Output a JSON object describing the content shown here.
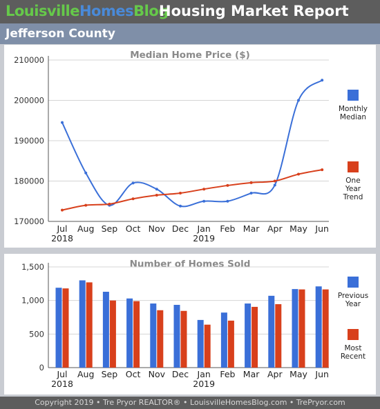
{
  "header": {
    "brand_part1": "Louisville",
    "brand_part2": "Homes",
    "brand_part3": "Blog",
    "report_title": "Housing Market Report"
  },
  "county": "Jefferson County",
  "footer": "Copyright 2019 • Tre Pryor REALTOR® • LouisvilleHomesBlog.com • TrePryor.com",
  "colors": {
    "blue": "#3a6fd8",
    "red": "#d8401c",
    "header_bg": "#5d5d5d",
    "county_bg": "#7f8fa8"
  },
  "chart_data": [
    {
      "type": "line",
      "title": "Median Home Price ($)",
      "categories": [
        "Jul",
        "Aug",
        "Sep",
        "Oct",
        "Nov",
        "Dec",
        "Jan",
        "Feb",
        "Mar",
        "Apr",
        "May",
        "Jun"
      ],
      "year_labels": [
        {
          "index": 0,
          "label": "2018"
        },
        {
          "index": 6,
          "label": "2019"
        }
      ],
      "ylim": [
        170000,
        210000
      ],
      "yticks": [
        "170000",
        "180000",
        "190000",
        "200000",
        "210000"
      ],
      "ytick_values": [
        170000,
        180000,
        190000,
        200000,
        210000
      ],
      "grid": true,
      "legend_position": "right",
      "series": [
        {
          "name": "Monthly Median",
          "name_lines": [
            "Monthly",
            "Median"
          ],
          "color": "#3a6fd8",
          "values": [
            194500,
            182000,
            174000,
            179500,
            178000,
            173800,
            175000,
            175000,
            177000,
            179000,
            200000,
            205000
          ]
        },
        {
          "name": "One Year Trend",
          "name_lines": [
            "One",
            "Year",
            "Trend"
          ],
          "color": "#d8401c",
          "values": [
            172800,
            174000,
            174300,
            175600,
            176500,
            177000,
            178000,
            178900,
            179600,
            180000,
            181700,
            182800
          ]
        }
      ]
    },
    {
      "type": "bar",
      "title": "Number of Homes Sold",
      "categories": [
        "Jul",
        "Aug",
        "Sep",
        "Oct",
        "Nov",
        "Dec",
        "Jan",
        "Feb",
        "Mar",
        "Apr",
        "May",
        "Jun"
      ],
      "year_labels": [
        {
          "index": 0,
          "label": "2018"
        },
        {
          "index": 6,
          "label": "2019"
        }
      ],
      "ylim": [
        0,
        1500
      ],
      "yticks": [
        "0",
        "500",
        "1,000",
        "1,500"
      ],
      "ytick_values": [
        0,
        500,
        1000,
        1500
      ],
      "grid": true,
      "legend_position": "right",
      "series": [
        {
          "name": "Previous Year",
          "name_lines": [
            "Previous",
            "Year"
          ],
          "color": "#3a6fd8",
          "values": [
            1190,
            1300,
            1130,
            1030,
            955,
            935,
            710,
            820,
            955,
            1070,
            1170,
            1210
          ]
        },
        {
          "name": "Most Recent",
          "name_lines": [
            "Most",
            "Recent"
          ],
          "color": "#d8401c",
          "values": [
            1180,
            1270,
            1000,
            990,
            855,
            845,
            640,
            700,
            905,
            945,
            1165,
            1165
          ]
        }
      ]
    }
  ]
}
